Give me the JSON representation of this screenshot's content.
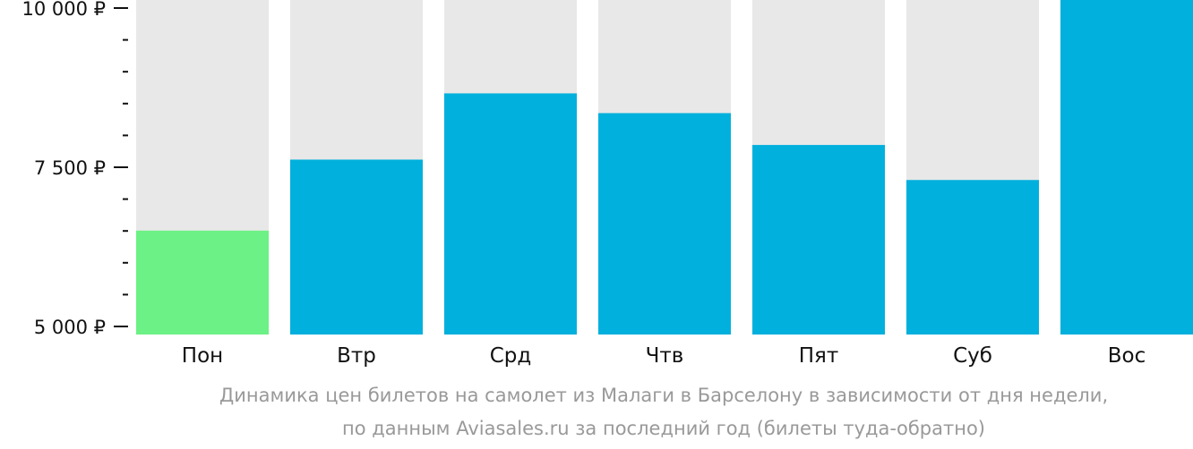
{
  "chart_data": {
    "type": "bar",
    "categories": [
      "Пон",
      "Втр",
      "Срд",
      "Чтв",
      "Пят",
      "Суб",
      "Вос"
    ],
    "values": [
      6505,
      7620,
      8660,
      8350,
      7850,
      7300,
      10195
    ],
    "ylim": [
      5000,
      10200
    ],
    "yticks": [
      {
        "value": 10000,
        "label": "10 000 ₽"
      },
      {
        "value": 7500,
        "label": "7 500 ₽"
      },
      {
        "value": 5000,
        "label": "5 000 ₽"
      }
    ],
    "minor_tick_step": 500,
    "colors": {
      "bar": "#01b0dc",
      "bar_lowest": "#6cf186",
      "background": "#e8e8e8"
    },
    "caption_lines": [
      "Динамика цен билетов на самолет из Малаги в Барселону в зависимости от дня недели,",
      "по данным Aviasales.ru за последний год (билеты туда-обратно)"
    ],
    "grid": false
  }
}
